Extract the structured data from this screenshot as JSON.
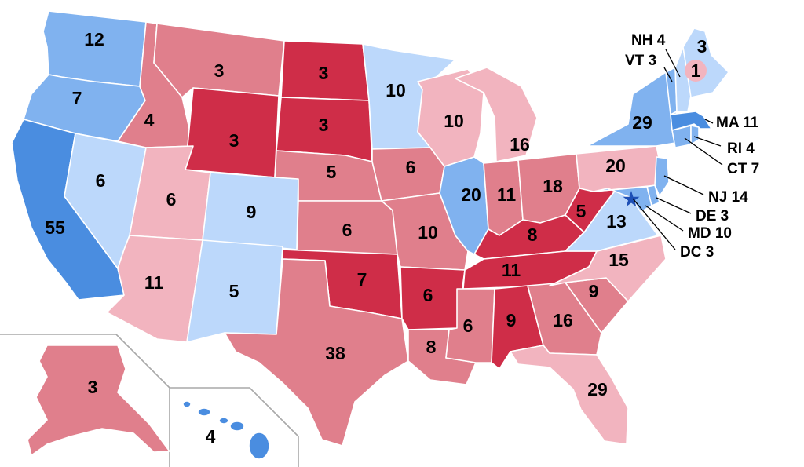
{
  "colors": {
    "solid_d": "#4a8de0",
    "likely_d": "#80b2ef",
    "lean_d": "#bcd8fb",
    "lean_r": "#f2b4bf",
    "likely_r": "#e07f8c",
    "solid_r": "#cf2d48",
    "dc_marker": "#1e4fb5",
    "inset_border": "#a8a8a8"
  },
  "states": {
    "WA": {
      "votes": "12",
      "rating": "likely_d"
    },
    "OR": {
      "votes": "7",
      "rating": "likely_d"
    },
    "CA": {
      "votes": "55",
      "rating": "solid_d"
    },
    "NV": {
      "votes": "6",
      "rating": "lean_d"
    },
    "ID": {
      "votes": "4",
      "rating": "likely_r"
    },
    "MT": {
      "votes": "3",
      "rating": "likely_r"
    },
    "WY": {
      "votes": "3",
      "rating": "solid_r"
    },
    "UT": {
      "votes": "6",
      "rating": "lean_r"
    },
    "AZ": {
      "votes": "11",
      "rating": "lean_r"
    },
    "CO": {
      "votes": "9",
      "rating": "lean_d"
    },
    "NM": {
      "votes": "5",
      "rating": "lean_d"
    },
    "ND": {
      "votes": "3",
      "rating": "solid_r"
    },
    "SD": {
      "votes": "3",
      "rating": "solid_r"
    },
    "NE": {
      "votes": "5",
      "rating": "likely_r"
    },
    "KS": {
      "votes": "6",
      "rating": "likely_r"
    },
    "OK": {
      "votes": "7",
      "rating": "solid_r"
    },
    "TX": {
      "votes": "38",
      "rating": "likely_r"
    },
    "MN": {
      "votes": "10",
      "rating": "lean_d"
    },
    "IA": {
      "votes": "6",
      "rating": "likely_r"
    },
    "MO": {
      "votes": "10",
      "rating": "likely_r"
    },
    "AR": {
      "votes": "6",
      "rating": "solid_r"
    },
    "LA": {
      "votes": "8",
      "rating": "likely_r"
    },
    "WI": {
      "votes": "10",
      "rating": "lean_r"
    },
    "IL": {
      "votes": "20",
      "rating": "likely_d"
    },
    "MI": {
      "votes": "16",
      "rating": "lean_r"
    },
    "IN": {
      "votes": "11",
      "rating": "likely_r"
    },
    "OH": {
      "votes": "18",
      "rating": "likely_r"
    },
    "KY": {
      "votes": "8",
      "rating": "solid_r"
    },
    "TN": {
      "votes": "11",
      "rating": "solid_r"
    },
    "MS": {
      "votes": "6",
      "rating": "likely_r"
    },
    "AL": {
      "votes": "9",
      "rating": "solid_r"
    },
    "GA": {
      "votes": "16",
      "rating": "likely_r"
    },
    "FL": {
      "votes": "29",
      "rating": "lean_r"
    },
    "SC": {
      "votes": "9",
      "rating": "likely_r"
    },
    "NC": {
      "votes": "15",
      "rating": "lean_r"
    },
    "VA": {
      "votes": "13",
      "rating": "lean_d"
    },
    "WV": {
      "votes": "5",
      "rating": "solid_r"
    },
    "PA": {
      "votes": "20",
      "rating": "lean_r"
    },
    "NY": {
      "votes": "29",
      "rating": "likely_d"
    },
    "ME": {
      "votes": "3",
      "rating": "lean_d"
    },
    "ME2": {
      "votes": "1",
      "rating": "lean_r"
    },
    "AK": {
      "votes": "3",
      "rating": "likely_r"
    },
    "HI": {
      "votes": "4",
      "rating": "solid_d"
    }
  },
  "small_states": {
    "NH": {
      "label": "NH 4",
      "rating": "lean_d"
    },
    "VT": {
      "label": "VT 3",
      "rating": "likely_d"
    },
    "MA": {
      "label": "MA 11",
      "rating": "solid_d"
    },
    "RI": {
      "label": "RI 4",
      "rating": "likely_d"
    },
    "CT": {
      "label": "CT 7",
      "rating": "likely_d"
    },
    "NJ": {
      "label": "NJ 14",
      "rating": "likely_d"
    },
    "DE": {
      "label": "DE 3",
      "rating": "likely_d"
    },
    "MD": {
      "label": "MD 10",
      "rating": "likely_d"
    },
    "DC": {
      "label": "DC 3",
      "rating": "solid_d"
    }
  }
}
